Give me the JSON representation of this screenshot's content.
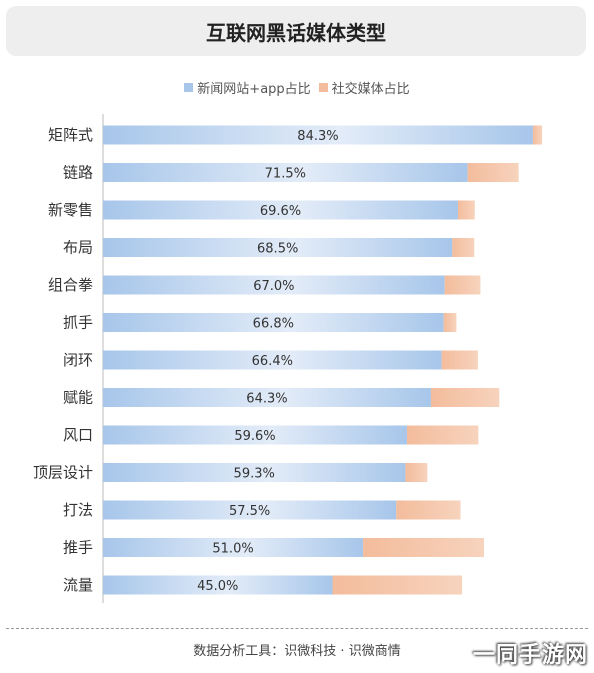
{
  "title": "互联网黑话媒体类型",
  "legend": {
    "news": "新闻网站+app占比",
    "social": "社交媒体占比"
  },
  "colors": {
    "news_left": "#a7c6ea",
    "news_right": "#e3ecf8",
    "social": "#f3bc9c",
    "social_light": "#f7d3bd"
  },
  "footer": "数据分析工具：识微科技 · 识微商情",
  "watermark": "一同手游网",
  "chart_data": {
    "type": "bar",
    "orientation": "horizontal",
    "stacked": true,
    "categories": [
      "矩阵式",
      "链路",
      "新零售",
      "布局",
      "组合拳",
      "抓手",
      "闭环",
      "赋能",
      "风口",
      "顶层设计",
      "打法",
      "推手",
      "流量"
    ],
    "series": [
      {
        "name": "新闻网站+app占比",
        "values": [
          84.3,
          71.5,
          69.6,
          68.5,
          67.0,
          66.8,
          66.4,
          64.3,
          59.6,
          59.3,
          57.5,
          51.0,
          45.0
        ],
        "labels": [
          "84.3%",
          "71.5%",
          "69.6%",
          "68.5%",
          "67.0%",
          "66.8%",
          "66.4%",
          "64.3%",
          "59.6%",
          "59.3%",
          "57.5%",
          "51.0%",
          "45.0%"
        ]
      },
      {
        "name": "社交媒体占比",
        "values": [
          1.8,
          10.0,
          3.3,
          4.3,
          7.0,
          2.5,
          7.1,
          13.4,
          14.0,
          4.3,
          12.6,
          23.7,
          25.4
        ]
      }
    ],
    "xlim": [
      0,
      100
    ],
    "legend_position": "top-center",
    "grid": false
  }
}
